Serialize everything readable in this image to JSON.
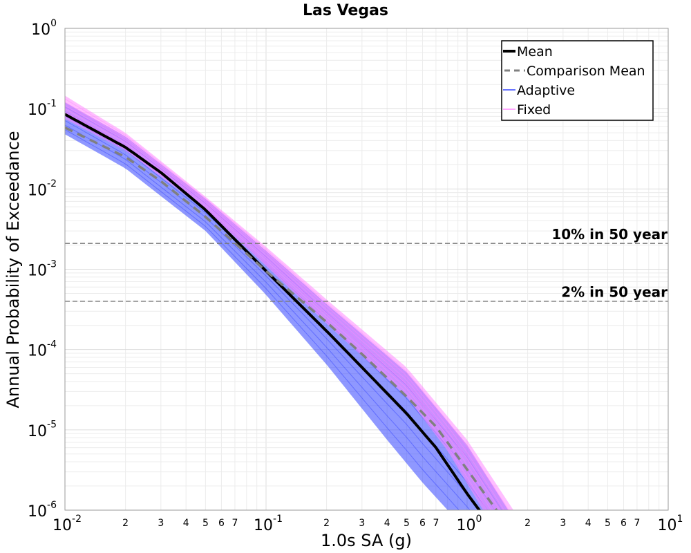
{
  "chart_data": {
    "type": "line",
    "title": "Las Vegas",
    "xlabel": "1.0s SA (g)",
    "ylabel": "Annual Probability of Exceedance",
    "xscale": "log",
    "yscale": "log",
    "xlim": [
      0.01,
      10
    ],
    "ylim": [
      1e-06,
      1
    ],
    "grid": true,
    "x_major_ticks": [
      {
        "value": 0.01,
        "base": "10",
        "exp": "-2"
      },
      {
        "value": 0.1,
        "base": "10",
        "exp": "-1"
      },
      {
        "value": 1,
        "base": "10",
        "exp": "0"
      },
      {
        "value": 10,
        "base": "10",
        "exp": "1"
      }
    ],
    "x_minor_tick_labels": [
      "2",
      "3",
      "4",
      "5",
      "6",
      "7"
    ],
    "y_major_ticks": [
      {
        "value": 1,
        "base": "10",
        "exp": "0"
      },
      {
        "value": 0.1,
        "base": "10",
        "exp": "-1"
      },
      {
        "value": 0.01,
        "base": "10",
        "exp": "-2"
      },
      {
        "value": 0.001,
        "base": "10",
        "exp": "-3"
      },
      {
        "value": 0.0001,
        "base": "10",
        "exp": "-4"
      },
      {
        "value": 1e-05,
        "base": "10",
        "exp": "-5"
      },
      {
        "value": 1e-06,
        "base": "10",
        "exp": "-6"
      }
    ],
    "series": [
      {
        "name": "Mean",
        "color": "#000000",
        "style": "solid",
        "x": [
          0.01,
          0.02,
          0.03,
          0.05,
          0.1,
          0.2,
          0.3,
          0.5,
          0.7,
          1.0,
          1.15
        ],
        "y": [
          0.085,
          0.033,
          0.016,
          0.0055,
          0.00095,
          0.00017,
          6e-05,
          1.6e-05,
          6e-06,
          1.6e-06,
          1e-06
        ]
      },
      {
        "name": "Comparison Mean",
        "color": "#808080",
        "style": "dashed",
        "x": [
          0.01,
          0.02,
          0.03,
          0.05,
          0.1,
          0.2,
          0.3,
          0.5,
          0.7,
          1.0,
          1.4
        ],
        "y": [
          0.058,
          0.025,
          0.0125,
          0.0045,
          0.00095,
          0.00022,
          8.8e-05,
          2.6e-05,
          1.1e-05,
          3.2e-06,
          1e-06
        ]
      }
    ],
    "bands": [
      {
        "name": "Adaptive",
        "color": "#3344ff",
        "upper": {
          "x": [
            0.01,
            0.02,
            0.05,
            0.1,
            0.2,
            0.5,
            1.0,
            1.6
          ],
          "y": [
            0.12,
            0.045,
            0.0075,
            0.0017,
            0.00037,
            5.2e-05,
            6.5e-06,
            1e-06
          ]
        },
        "lower": {
          "x": [
            0.01,
            0.02,
            0.05,
            0.1,
            0.2,
            0.4,
            0.6,
            0.8
          ],
          "y": [
            0.048,
            0.018,
            0.003,
            0.00048,
            6.5e-05,
            7.5e-06,
            2.2e-06,
            1e-06
          ]
        }
      },
      {
        "name": "Fixed",
        "color": "#ff88ff",
        "upper": {
          "x": [
            0.01,
            0.02,
            0.05,
            0.1,
            0.2,
            0.5,
            1.0,
            1.7
          ],
          "y": [
            0.145,
            0.05,
            0.008,
            0.0019,
            0.00042,
            6e-05,
            7.5e-06,
            1e-06
          ]
        },
        "lower": {
          "x": [
            0.01,
            0.02,
            0.05,
            0.1,
            0.2,
            0.5,
            0.8,
            1.2
          ],
          "y": [
            0.075,
            0.03,
            0.0055,
            0.0011,
            0.00021,
            2.6e-05,
            5.5e-06,
            1e-06
          ]
        }
      }
    ],
    "reference_lines": [
      {
        "label": "10% in 50 year",
        "y": 0.0021
      },
      {
        "label": "2% in 50 year",
        "y": 0.0004
      }
    ],
    "legend": {
      "position": "top-right",
      "entries": [
        {
          "label": "Mean",
          "color": "#000000",
          "style": "thick-solid"
        },
        {
          "label": "Comparison Mean",
          "color": "#808080",
          "style": "dashed"
        },
        {
          "label": "Adaptive",
          "color": "#3344ff",
          "style": "thin-solid"
        },
        {
          "label": "Fixed",
          "color": "#ff88ff",
          "style": "thin-solid"
        }
      ]
    }
  }
}
